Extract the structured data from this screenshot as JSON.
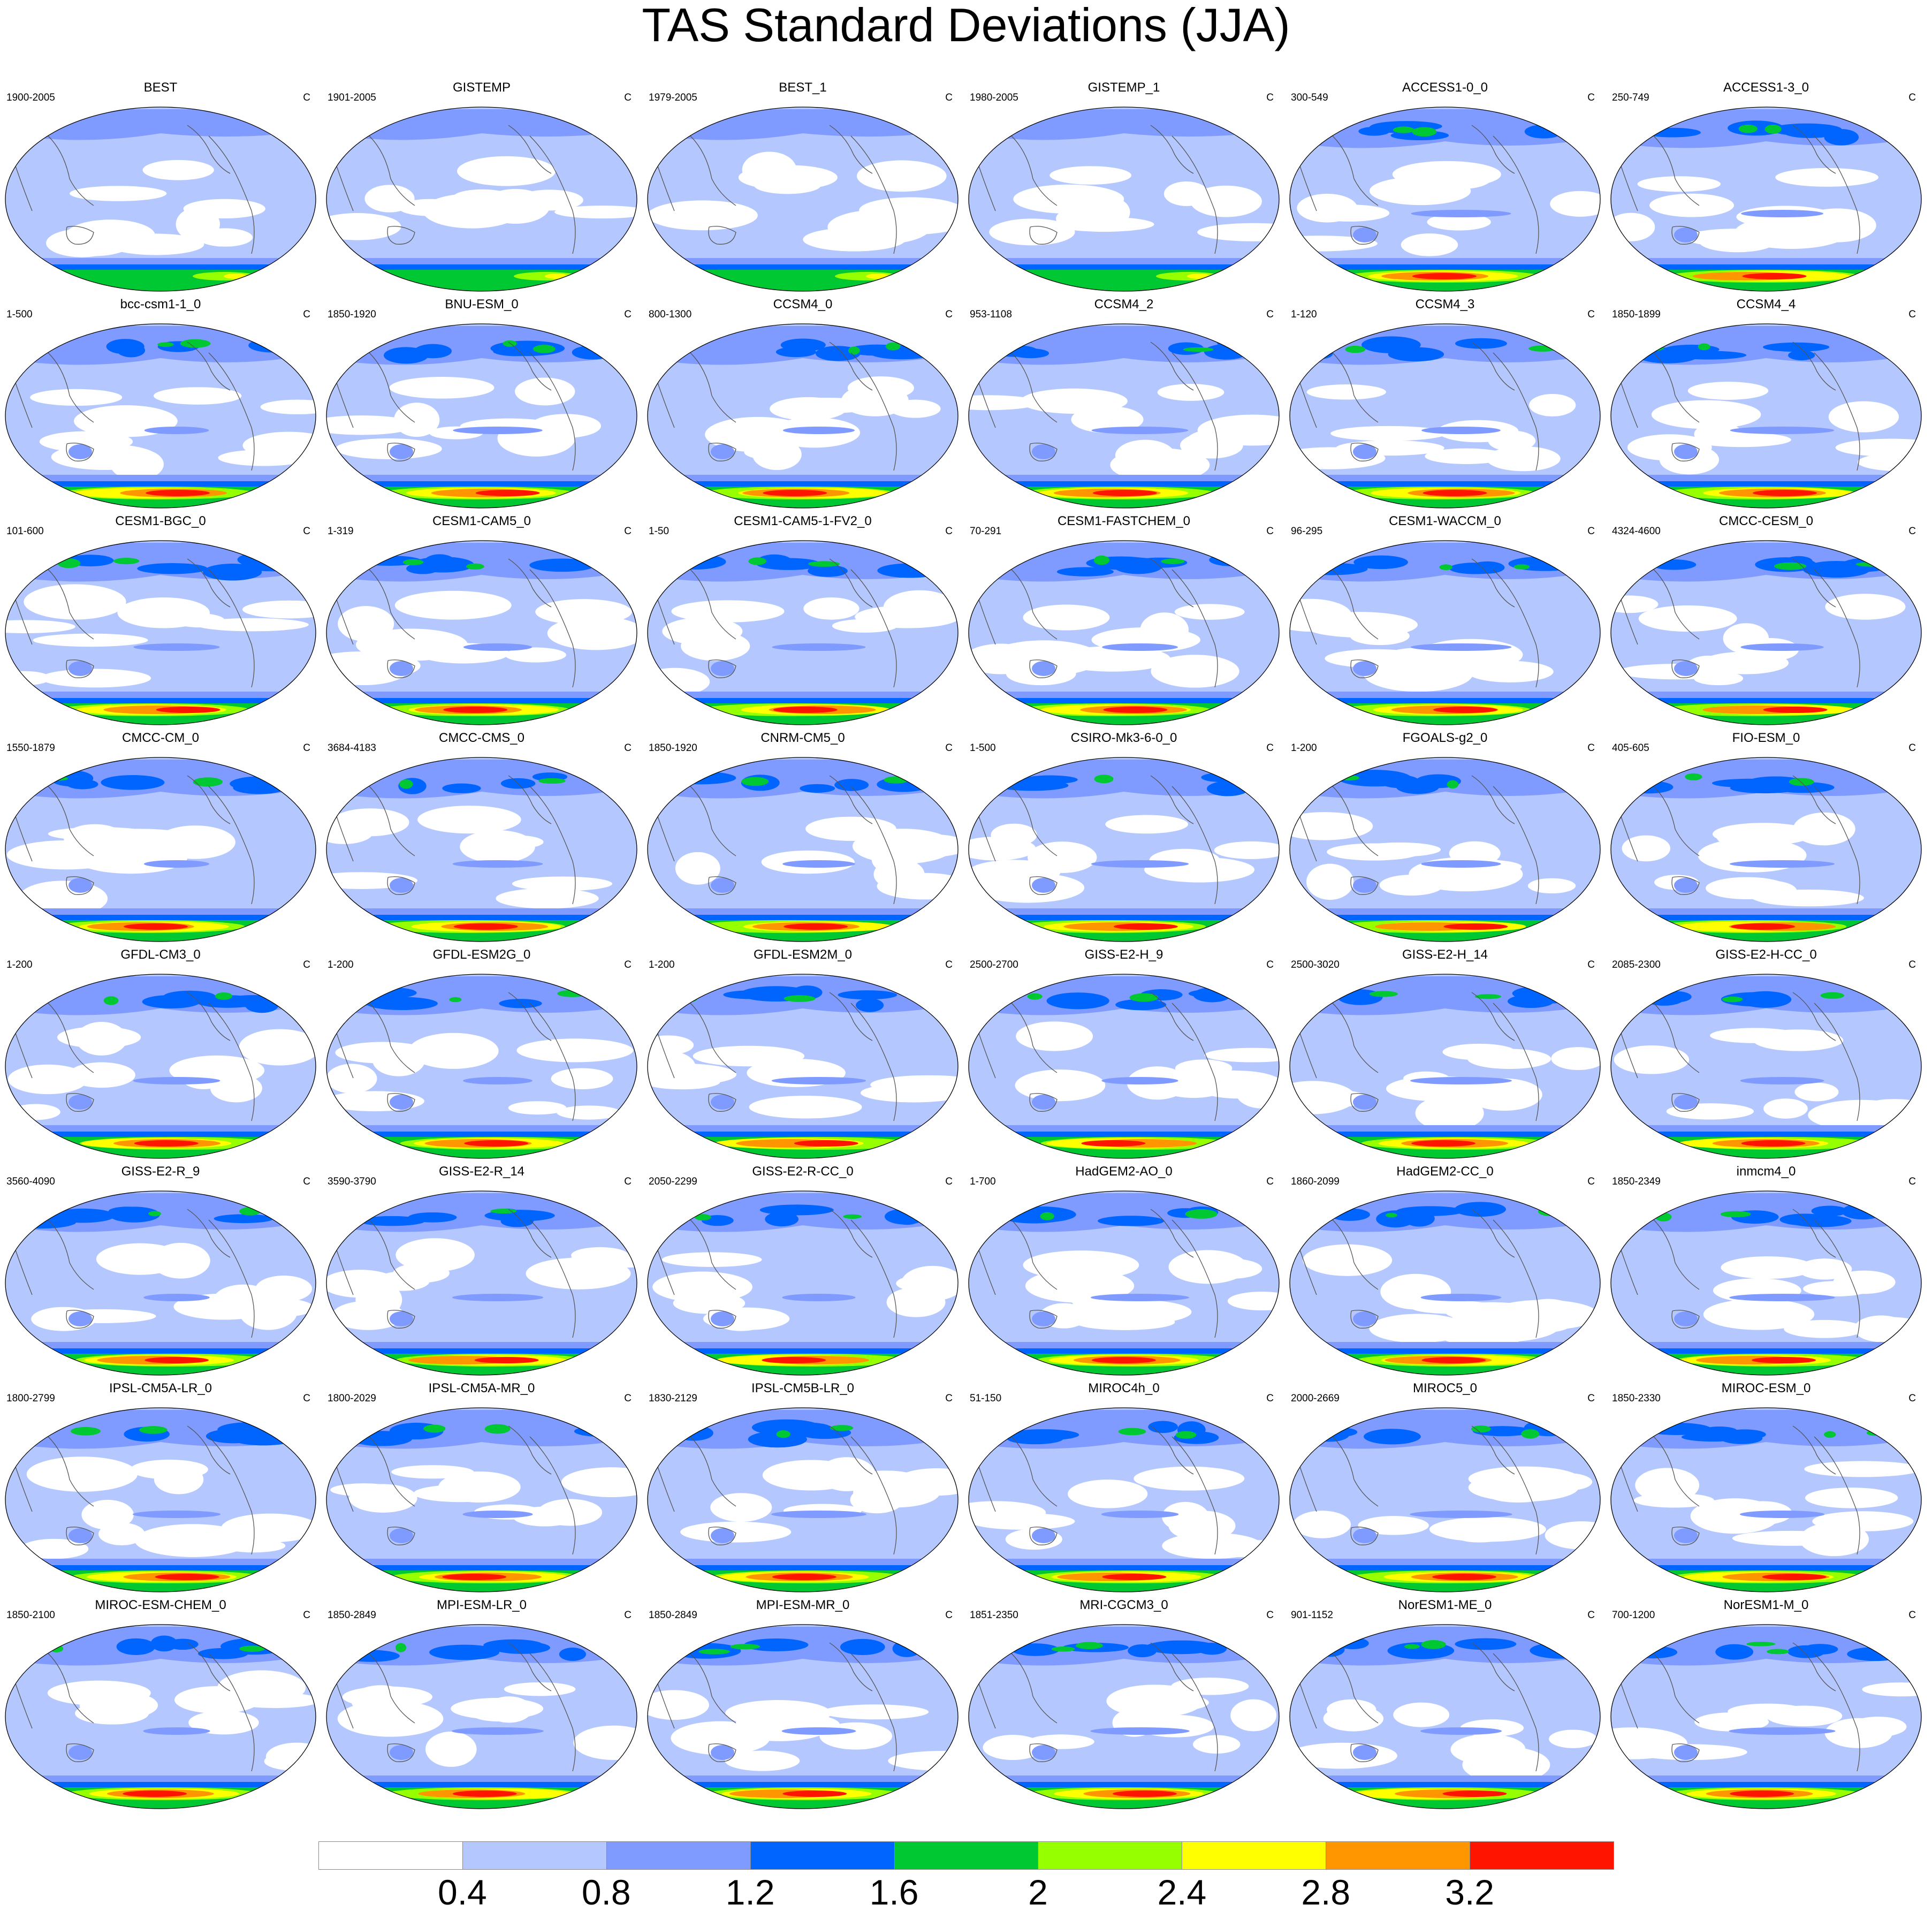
{
  "title": "TAS Standard Deviations (JJA)",
  "unit": "C",
  "panels": [
    {
      "name": "BEST",
      "range": "1900-2005"
    },
    {
      "name": "GISTEMP",
      "range": "1901-2005"
    },
    {
      "name": "BEST_1",
      "range": "1979-2005"
    },
    {
      "name": "GISTEMP_1",
      "range": "1980-2005"
    },
    {
      "name": "ACCESS1-0_0",
      "range": "300-549"
    },
    {
      "name": "ACCESS1-3_0",
      "range": "250-749"
    },
    {
      "name": "bcc-csm1-1_0",
      "range": "1-500"
    },
    {
      "name": "BNU-ESM_0",
      "range": "1850-1920"
    },
    {
      "name": "CCSM4_0",
      "range": "800-1300"
    },
    {
      "name": "CCSM4_2",
      "range": "953-1108"
    },
    {
      "name": "CCSM4_3",
      "range": "1-120"
    },
    {
      "name": "CCSM4_4",
      "range": "1850-1899"
    },
    {
      "name": "CESM1-BGC_0",
      "range": "101-600"
    },
    {
      "name": "CESM1-CAM5_0",
      "range": "1-319"
    },
    {
      "name": "CESM1-CAM5-1-FV2_0",
      "range": "1-50"
    },
    {
      "name": "CESM1-FASTCHEM_0",
      "range": "70-291"
    },
    {
      "name": "CESM1-WACCM_0",
      "range": "96-295"
    },
    {
      "name": "CMCC-CESM_0",
      "range": "4324-4600"
    },
    {
      "name": "CMCC-CM_0",
      "range": "1550-1879"
    },
    {
      "name": "CMCC-CMS_0",
      "range": "3684-4183"
    },
    {
      "name": "CNRM-CM5_0",
      "range": "1850-1920"
    },
    {
      "name": "CSIRO-Mk3-6-0_0",
      "range": "1-500"
    },
    {
      "name": "FGOALS-g2_0",
      "range": "1-200"
    },
    {
      "name": "FIO-ESM_0",
      "range": "405-605"
    },
    {
      "name": "GFDL-CM3_0",
      "range": "1-200"
    },
    {
      "name": "GFDL-ESM2G_0",
      "range": "1-200"
    },
    {
      "name": "GFDL-ESM2M_0",
      "range": "1-200"
    },
    {
      "name": "GISS-E2-H_9",
      "range": "2500-2700"
    },
    {
      "name": "GISS-E2-H_14",
      "range": "2500-3020"
    },
    {
      "name": "GISS-E2-H-CC_0",
      "range": "2085-2300"
    },
    {
      "name": "GISS-E2-R_9",
      "range": "3560-4090"
    },
    {
      "name": "GISS-E2-R_14",
      "range": "3590-3790"
    },
    {
      "name": "GISS-E2-R-CC_0",
      "range": "2050-2299"
    },
    {
      "name": "HadGEM2-AO_0",
      "range": "1-700"
    },
    {
      "name": "HadGEM2-CC_0",
      "range": "1860-2099"
    },
    {
      "name": "inmcm4_0",
      "range": "1850-2349"
    },
    {
      "name": "IPSL-CM5A-LR_0",
      "range": "1800-2799"
    },
    {
      "name": "IPSL-CM5A-MR_0",
      "range": "1800-2029"
    },
    {
      "name": "IPSL-CM5B-LR_0",
      "range": "1830-2129"
    },
    {
      "name": "MIROC4h_0",
      "range": "51-150"
    },
    {
      "name": "MIROC5_0",
      "range": "2000-2669"
    },
    {
      "name": "MIROC-ESM_0",
      "range": "1850-2330"
    },
    {
      "name": "MIROC-ESM-CHEM_0",
      "range": "1850-2100"
    },
    {
      "name": "MPI-ESM-LR_0",
      "range": "1850-2849"
    },
    {
      "name": "MPI-ESM-MR_0",
      "range": "1850-2849"
    },
    {
      "name": "MRI-CGCM3_0",
      "range": "1851-2350"
    },
    {
      "name": "NorESM1-ME_0",
      "range": "901-1152"
    },
    {
      "name": "NorESM1-M_0",
      "range": "700-1200"
    }
  ],
  "colorbar": {
    "colors": [
      "#ffffff",
      "#b4c8ff",
      "#7f9bff",
      "#0064ff",
      "#00c832",
      "#96ff00",
      "#ffff00",
      "#ff9600",
      "#ff1400"
    ],
    "labels": [
      "0.4",
      "0.8",
      "1.2",
      "1.6",
      "2",
      "2.4",
      "2.8",
      "3.2"
    ]
  }
}
